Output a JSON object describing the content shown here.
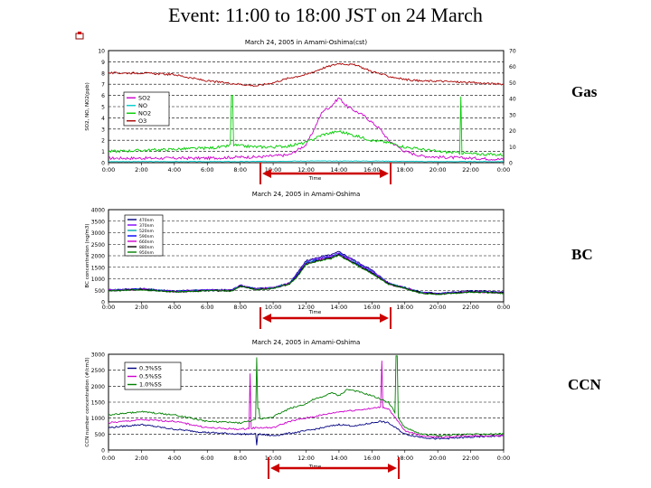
{
  "title": "Event: 11:00 to 18:00 JST on 24 March",
  "labels": {
    "gas": "Gas",
    "bc": "BC",
    "ccn": "CCN"
  },
  "chart_data": [
    {
      "type": "line",
      "title": "March 24, 2005 in Amami-Oshima(cst)",
      "xlabel": "Time",
      "ylabel": "SO2, NO, NO2(ppb)",
      "y2label": "O3(ppb)",
      "x_ticks": [
        "0:00",
        "2:00",
        "4:00",
        "6:00",
        "8:00",
        "10:00",
        "12:00",
        "14:00",
        "16:00",
        "18:00",
        "20:00",
        "22:00",
        "0:00"
      ],
      "xlim": [
        0,
        24
      ],
      "ylim": [
        0,
        10
      ],
      "y_ticks": [
        0,
        1,
        2,
        3,
        4,
        5,
        6,
        7,
        8,
        9,
        10
      ],
      "y2lim": [
        0,
        70
      ],
      "y2_ticks": [
        0,
        10,
        20,
        30,
        40,
        50,
        60,
        70
      ],
      "grid": true,
      "legend": "top-left",
      "event_window": [
        10.5,
        18.5
      ],
      "series": [
        {
          "name": "SO2",
          "color": "#cc00cc",
          "axis": "left",
          "x": [
            0,
            2,
            4,
            6,
            8,
            9,
            10,
            11,
            12,
            12.5,
            13,
            13.5,
            14,
            14.5,
            15,
            15.5,
            16,
            16.5,
            17,
            18,
            19,
            20,
            22,
            24
          ],
          "y": [
            0.4,
            0.4,
            0.4,
            0.4,
            0.5,
            0.5,
            0.6,
            0.7,
            1.6,
            3.0,
            4.6,
            5.0,
            5.8,
            5.0,
            4.6,
            4.2,
            3.6,
            3.0,
            2.0,
            1.0,
            0.6,
            0.5,
            0.4,
            0.3
          ]
        },
        {
          "name": "NO",
          "color": "#00cccc",
          "axis": "left",
          "x": [
            0,
            4,
            8,
            12,
            16,
            20,
            24
          ],
          "y": [
            0.1,
            0.1,
            0.1,
            0.15,
            0.15,
            0.1,
            0.1
          ]
        },
        {
          "name": "NO2",
          "color": "#00cc00",
          "axis": "left",
          "x": [
            0,
            2,
            4,
            6,
            7,
            7.5,
            8,
            9,
            10,
            11,
            12,
            13,
            14,
            15,
            16,
            17,
            18,
            19,
            20,
            22,
            24
          ],
          "y": [
            1.0,
            1.1,
            1.2,
            1.3,
            1.4,
            1.6,
            1.5,
            1.4,
            1.4,
            1.5,
            1.8,
            2.5,
            2.8,
            2.4,
            2.0,
            1.8,
            1.4,
            1.2,
            1.0,
            0.8,
            0.7
          ]
        },
        {
          "name": "O3",
          "color": "#aa0000",
          "axis": "right",
          "x": [
            0,
            2,
            4,
            6,
            8,
            9,
            10,
            11,
            12,
            13,
            14,
            15,
            16,
            17,
            18,
            19,
            20,
            22,
            24
          ],
          "y": [
            56,
            56,
            55,
            51,
            49,
            48,
            50,
            53,
            55,
            59,
            62,
            61,
            57,
            54,
            52,
            51,
            51,
            50,
            49
          ]
        }
      ]
    },
    {
      "type": "line",
      "title": "March 24, 2005 in Amami-Oshima",
      "xlabel": "Time",
      "ylabel": "BC concentration (ng/m3)",
      "x_ticks": [
        "0:00",
        "2:00",
        "4:00",
        "6:00",
        "8:00",
        "10:00",
        "12:00",
        "14:00",
        "16:00",
        "18:00",
        "20:00",
        "22:00",
        "0:00"
      ],
      "xlim": [
        0,
        24
      ],
      "ylim": [
        0,
        4000
      ],
      "y_ticks": [
        0,
        500,
        1000,
        1500,
        2000,
        2500,
        3000,
        3500,
        4000
      ],
      "grid": true,
      "legend": "top-left",
      "event_window": [
        10.5,
        18.5
      ],
      "series": [
        {
          "name": "470nm",
          "color": "#000080",
          "offset": 80
        },
        {
          "name": "370nm",
          "color": "#8000ff",
          "offset": 40
        },
        {
          "name": "520nm",
          "color": "#00aaaa",
          "offset": 0
        },
        {
          "name": "590nm",
          "color": "#0000ff",
          "offset": -20
        },
        {
          "name": "660nm",
          "color": "#cc00cc",
          "offset": -40
        },
        {
          "name": "880nm",
          "color": "#000000",
          "offset": -60
        },
        {
          "name": "950nm",
          "color": "#008000",
          "offset": -80
        }
      ],
      "x": [
        0,
        2,
        4,
        6,
        7.5,
        8,
        9,
        10,
        11,
        11.5,
        12,
        13,
        13.5,
        14,
        14.5,
        15,
        16,
        17,
        18,
        19,
        20,
        22,
        24
      ],
      "y": [
        500,
        550,
        450,
        500,
        500,
        700,
        550,
        600,
        800,
        1200,
        1700,
        1900,
        1950,
        2100,
        1900,
        1700,
        1300,
        800,
        600,
        400,
        350,
        450,
        400
      ]
    },
    {
      "type": "line",
      "title": "March 24, 2005 in Amami-Oshima",
      "xlabel": "Time",
      "ylabel": "CCN number concentration (#/cm3)",
      "x_ticks": [
        "0:00",
        "2:00",
        "4:00",
        "6:00",
        "8:00",
        "10:00",
        "12:00",
        "14:00",
        "16:00",
        "18:00",
        "20:00",
        "22:00",
        "0:00"
      ],
      "xlim": [
        0,
        24
      ],
      "ylim": [
        0,
        3000
      ],
      "y_ticks": [
        0,
        500,
        1000,
        1500,
        2000,
        2500,
        3000
      ],
      "grid": true,
      "legend": "top-left",
      "event_window": [
        10.5,
        18.5
      ],
      "series": [
        {
          "name": "0.3%SS",
          "color": "#000080",
          "x": [
            0,
            2,
            4,
            6,
            8,
            9,
            10,
            12,
            13,
            14,
            15,
            16,
            16.5,
            17,
            18,
            19,
            20,
            22,
            24
          ],
          "y": [
            700,
            800,
            650,
            550,
            500,
            500,
            450,
            600,
            700,
            800,
            750,
            850,
            900,
            850,
            500,
            400,
            350,
            400,
            450
          ]
        },
        {
          "name": "0.5%SS",
          "color": "#cc00cc",
          "x": [
            0,
            2,
            4,
            6,
            8,
            9,
            10,
            11,
            12,
            13,
            14,
            15,
            16,
            16.5,
            17,
            18,
            19,
            20,
            22,
            24
          ],
          "y": [
            850,
            950,
            900,
            700,
            650,
            700,
            700,
            900,
            1000,
            1100,
            1200,
            1250,
            1300,
            1350,
            1300,
            600,
            450,
            400,
            450,
            450
          ]
        },
        {
          "name": "1.0%SS",
          "color": "#008000",
          "x": [
            0,
            2,
            4,
            6,
            8,
            9,
            10,
            11,
            12,
            12.5,
            13,
            13.5,
            14,
            14.5,
            15,
            16,
            16.5,
            17,
            18,
            19,
            20,
            22,
            24
          ],
          "y": [
            1100,
            1200,
            1100,
            900,
            850,
            950,
            1050,
            1300,
            1450,
            1600,
            1650,
            1800,
            1700,
            1900,
            1850,
            1700,
            1600,
            1500,
            700,
            500,
            450,
            500,
            500
          ]
        }
      ]
    }
  ]
}
